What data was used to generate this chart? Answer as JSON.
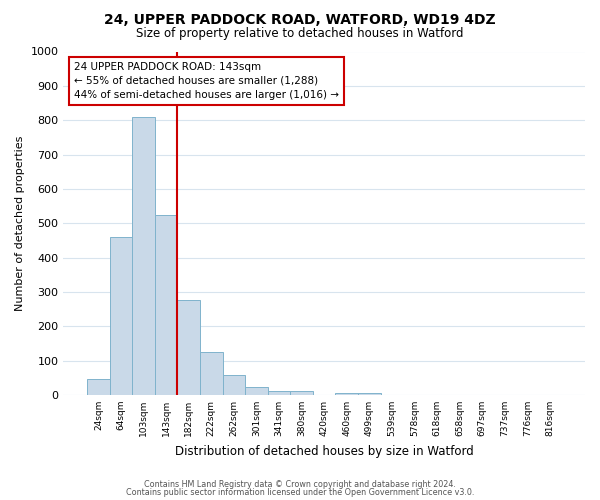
{
  "title": "24, UPPER PADDOCK ROAD, WATFORD, WD19 4DZ",
  "subtitle": "Size of property relative to detached houses in Watford",
  "xlabel": "Distribution of detached houses by size in Watford",
  "ylabel": "Number of detached properties",
  "bar_labels": [
    "24sqm",
    "64sqm",
    "103sqm",
    "143sqm",
    "182sqm",
    "222sqm",
    "262sqm",
    "301sqm",
    "341sqm",
    "380sqm",
    "420sqm",
    "460sqm",
    "499sqm",
    "539sqm",
    "578sqm",
    "618sqm",
    "658sqm",
    "697sqm",
    "737sqm",
    "776sqm",
    "816sqm"
  ],
  "bar_values": [
    46,
    460,
    810,
    525,
    275,
    125,
    58,
    22,
    10,
    11,
    0,
    7,
    7,
    0,
    0,
    0,
    0,
    0,
    0,
    0,
    0
  ],
  "bar_color": "#c9d9e8",
  "bar_edge_color": "#7fb3cc",
  "vline_x": 3,
  "vline_color": "#cc0000",
  "ylim": [
    0,
    1000
  ],
  "yticks": [
    0,
    100,
    200,
    300,
    400,
    500,
    600,
    700,
    800,
    900,
    1000
  ],
  "annotation_title": "24 UPPER PADDOCK ROAD: 143sqm",
  "annotation_line1": "← 55% of detached houses are smaller (1,288)",
  "annotation_line2": "44% of semi-detached houses are larger (1,016) →",
  "annotation_box_color": "#ffffff",
  "annotation_box_edge": "#cc0000",
  "footer1": "Contains HM Land Registry data © Crown copyright and database right 2024.",
  "footer2": "Contains public sector information licensed under the Open Government Licence v3.0.",
  "bg_color": "#ffffff",
  "plot_bg_color": "#ffffff",
  "grid_color": "#d8e4ee"
}
